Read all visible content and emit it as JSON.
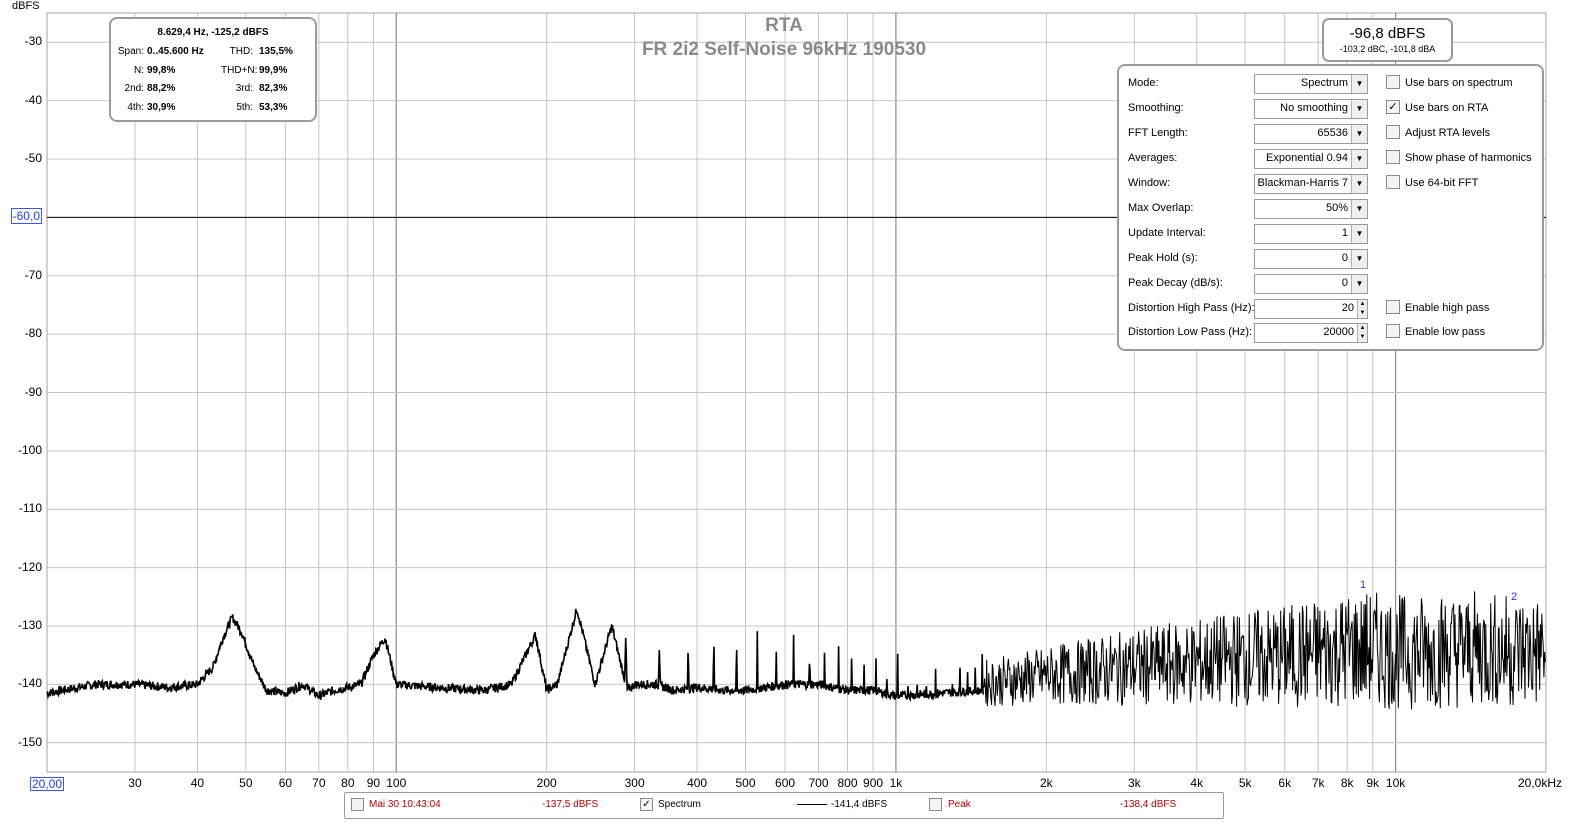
{
  "chart": {
    "title": "RTA",
    "subtitle": "FR 2i2 Self-Noise 96kHz 190530",
    "y_unit": "dBFS",
    "y_ticks": [
      "-30",
      "-40",
      "-50",
      "-60,0",
      "-70",
      "-80",
      "-90",
      "-100",
      "-110",
      "-120",
      "-130",
      "-140",
      "-150"
    ],
    "x_ticks": [
      "20,00",
      "30",
      "40",
      "50",
      "60",
      "70",
      "80",
      "90",
      "100",
      "200",
      "300",
      "400",
      "500",
      "600",
      "700",
      "800",
      "900",
      "1k",
      "2k",
      "3k",
      "4k",
      "5k",
      "6k",
      "7k",
      "8k",
      "9k",
      "10k",
      "20,0kHz"
    ],
    "markers": [
      "1",
      "2"
    ]
  },
  "chart_data": {
    "type": "line",
    "title": "RTA",
    "subtitle": "FR 2i2 Self-Noise 96kHz 190530",
    "ylabel": "dBFS",
    "xscale": "log",
    "xlim": [
      20,
      20000
    ],
    "ylim": [
      -155,
      -25
    ],
    "grid": true,
    "cursor_level_dbfs": -60.0,
    "series": [
      {
        "name": "Spectrum",
        "x": [
          20,
          25,
          30,
          35,
          40,
          43,
          45,
          47,
          49,
          52,
          55,
          60,
          65,
          70,
          75,
          80,
          85,
          90,
          95,
          100,
          120,
          150,
          170,
          190,
          200,
          210,
          230,
          250,
          270,
          290,
          300,
          330,
          360,
          400,
          450,
          500,
          550,
          600,
          700,
          800,
          900,
          1000,
          1500,
          2000,
          3000,
          4000,
          5000,
          6000,
          8000,
          9000,
          10000,
          15000,
          20000
        ],
        "y": [
          -141.5,
          -140,
          -140,
          -140.5,
          -140,
          -137,
          -132,
          -128.5,
          -131,
          -137,
          -141,
          -141.5,
          -140,
          -142,
          -141,
          -140.5,
          -140,
          -135,
          -132,
          -140,
          -140.5,
          -141,
          -140,
          -131.5,
          -141,
          -140,
          -127,
          -140,
          -130,
          -141,
          -140,
          -140,
          -141,
          -140.5,
          -141,
          -141,
          -140.5,
          -140,
          -140,
          -141,
          -141,
          -142,
          -141,
          -140,
          -139,
          -138.5,
          -138,
          -138,
          -137,
          -137,
          -137.5,
          -137,
          -137.5
        ]
      }
    ]
  },
  "stats": {
    "header": "8.629,4 Hz, -125,2 dBFS",
    "span_label": "Span:",
    "span_value": "0..45.600 Hz",
    "thd_label": "THD:",
    "thd_value": "135,5%",
    "n_label": "N:",
    "n_value": "99,8%",
    "thdn_label": "THD+N:",
    "thdn_value": "99,9%",
    "h2_label": "2nd:",
    "h2_value": "88,2%",
    "h3_label": "3rd:",
    "h3_value": "82,3%",
    "h4_label": "4th:",
    "h4_value": "30,9%",
    "h5_label": "5th:",
    "h5_value": "53,3%"
  },
  "level": {
    "main": "-96,8 dBFS",
    "sub": "-103,2 dBC, -101,8 dBA"
  },
  "settings": {
    "rows": [
      {
        "label": "Mode:",
        "value": "Spectrum",
        "control": "dropdown"
      },
      {
        "label": "Smoothing:",
        "value": "No  smoothing",
        "control": "dropdown"
      },
      {
        "label": "FFT Length:",
        "value": "65536",
        "control": "dropdown"
      },
      {
        "label": "Averages:",
        "value": "Exponential 0.94",
        "control": "dropdown"
      },
      {
        "label": "Window:",
        "value": "Blackman-Harris 7",
        "control": "dropdown"
      },
      {
        "label": "Max Overlap:",
        "value": "50%",
        "control": "dropdown"
      },
      {
        "label": "Update Interval:",
        "value": "1",
        "control": "dropdown"
      },
      {
        "label": "Peak Hold (s):",
        "value": "0",
        "control": "dropdown"
      },
      {
        "label": "Peak Decay (dB/s):",
        "value": "0",
        "control": "dropdown"
      },
      {
        "label": "Distortion High Pass (Hz):",
        "value": "20",
        "control": "spinner"
      },
      {
        "label": "Distortion Low Pass (Hz):",
        "value": "20000",
        "control": "spinner"
      }
    ],
    "checks": [
      {
        "label": "Use bars on spectrum",
        "checked": false
      },
      {
        "label": "Use bars on RTA",
        "checked": true
      },
      {
        "label": "Adjust RTA levels",
        "checked": false
      },
      {
        "label": "Show phase of harmonics",
        "checked": false
      },
      {
        "label": "Use 64-bit FFT",
        "checked": false
      },
      {
        "label": "Enable high pass",
        "checked": false
      },
      {
        "label": "Enable low pass",
        "checked": false
      }
    ]
  },
  "legend": {
    "capture_label": "Mai 30 10:43:04",
    "capture_value": "-137,5 dBFS",
    "capture_checked": false,
    "spectrum_label": "Spectrum",
    "spectrum_value": "-141,4 dBFS",
    "spectrum_checked": true,
    "peak_label": "Peak",
    "peak_value": "-138,4 dBFS",
    "peak_checked": false
  },
  "colors": {
    "trace": "#000000",
    "grid": "#b4b4b4",
    "accent_blue": "#2040ff",
    "legend_red": "#c00000"
  }
}
